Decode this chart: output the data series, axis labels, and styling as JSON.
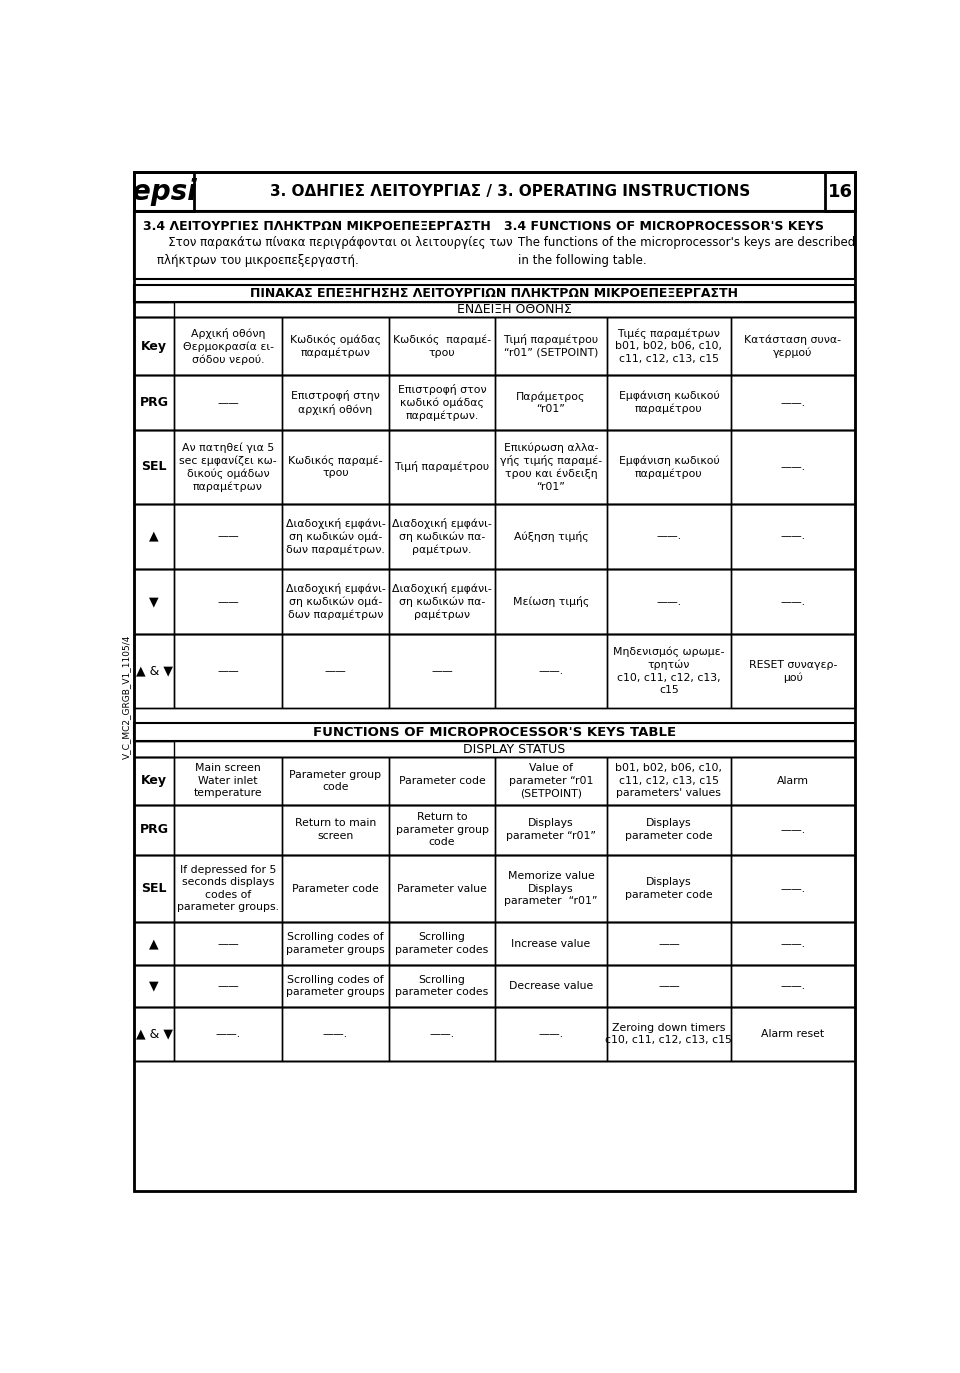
{
  "page_title": "3. ΟΔΗΓΙΕΣ ΛΕΙΤΟΥΡΓΙΑΣ / 3. OPERATING INSTRUCTIONS",
  "page_num": "16",
  "logo": "epsi",
  "section_left": "3.4 ΛΕΙΤΟΥΡΓΙΕΣ ΠΛΗΚΤΡΩΝ ΜΙΚΡΟΕΠΕΞΕΡΓΑΣΤΗ",
  "section_right": "3.4 FUNCTIONS OF MICROPROCESSOR'S KEYS",
  "desc_left": "Στον παρακάτω πίνακα περιγράφονται οι λειτουργίες των πλήκτρων του μικροεπεξεργαστή.",
  "desc_right": "The functions of the microprocessor's keys are described in the following table.",
  "greek_table_title": "ΠΙΝΑΚΑΣ ΕΠΕΞΗΓΗΣΗΣ ΛΕΙΤΟΥΡΓΙΩΝ ΠΛΗΚΤΡΩΝ ΜΙΚΡΟΕΠΕΞΕΡΓΑΣΤΗ",
  "greek_display_header": "ΕΝΔΕΙΞΗ ΟΘΟΝΗΣ",
  "english_table_title": "FUNCTIONS OF MICROPROCESSOR'S KEYS TABLE",
  "english_display_header": "DISPLAY STATUS",
  "sidebar_text": "V_C_MC2_GRGB_V1_1105/4",
  "bg_color": "#ffffff",
  "border_color": "#000000"
}
